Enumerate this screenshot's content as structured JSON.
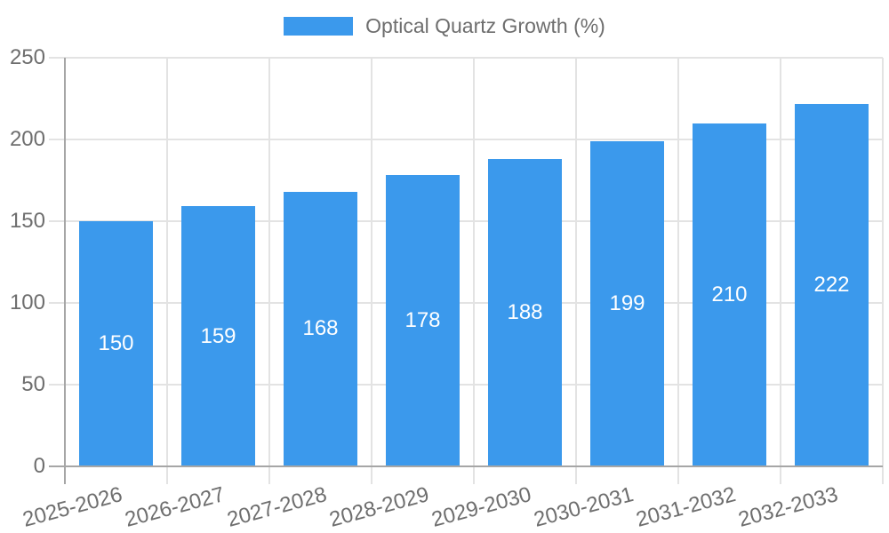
{
  "legend": {
    "label": "Optical Quartz Growth (%)"
  },
  "chart_data": {
    "type": "bar",
    "title": "Optical Quartz Growth (%)",
    "categories": [
      "2025-2026",
      "2026-2027",
      "2027-2028",
      "2028-2029",
      "2029-2030",
      "2030-2031",
      "2031-2032",
      "2032-2033"
    ],
    "values": [
      150,
      159,
      168,
      178,
      188,
      199,
      210,
      222
    ],
    "xlabel": "",
    "ylabel": "",
    "ylim": [
      0,
      250
    ],
    "yticks": [
      0,
      50,
      100,
      150,
      200,
      250
    ],
    "grid": true,
    "legend_position": "top",
    "bar_color": "#3B99EC",
    "bar_label_color": "#FFFFFF",
    "grid_color": "#E3E3E3",
    "axis_color": "#A6A6A6",
    "text_color": "#6E6E6E"
  }
}
